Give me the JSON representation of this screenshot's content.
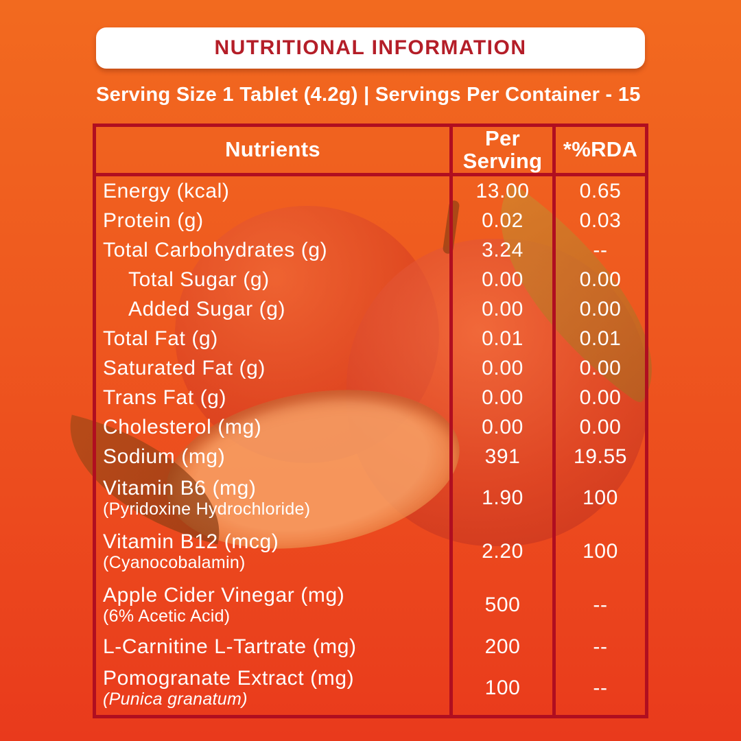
{
  "header": {
    "title": "NUTRITIONAL INFORMATION",
    "serving_line": "Serving Size 1 Tablet (4.2g) | Servings Per Container - 15"
  },
  "colors": {
    "bg_top": "#F26A1F",
    "bg_bottom": "#E93A1C",
    "border": "#B00E20",
    "title_text": "#B41E28",
    "text": "#FFFFFF",
    "box_bg": "#FFFFFF"
  },
  "background_art": {
    "description": "two red apples with leaf and apple slice, tinted orange",
    "icons": [
      "apple-back-image",
      "apple-front-image",
      "apple-stem-image",
      "leaf-right-image",
      "apple-slice-image",
      "leaf-dark-image"
    ]
  },
  "table": {
    "columns": [
      "Nutrients",
      "Per Serving",
      "*%RDA"
    ],
    "rows": [
      {
        "label": "Energy (kcal)",
        "per_serving": "13.00",
        "rda": "0.65"
      },
      {
        "label": "Protein (g)",
        "per_serving": "0.02",
        "rda": "0.03"
      },
      {
        "label": "Total Carbohydrates (g)",
        "per_serving": "3.24",
        "rda": "--"
      },
      {
        "label": "Total Sugar (g)",
        "indent": true,
        "per_serving": "0.00",
        "rda": "0.00"
      },
      {
        "label": "Added Sugar (g)",
        "indent": true,
        "per_serving": "0.00",
        "rda": "0.00"
      },
      {
        "label": "Total Fat (g)",
        "per_serving": "0.01",
        "rda": "0.01"
      },
      {
        "label": "Saturated Fat (g)",
        "per_serving": "0.00",
        "rda": "0.00"
      },
      {
        "label": "Trans Fat (g)",
        "per_serving": "0.00",
        "rda": "0.00"
      },
      {
        "label": "Cholesterol (mg)",
        "per_serving": "0.00",
        "rda": "0.00"
      },
      {
        "label": "Sodium (mg)",
        "per_serving": "391",
        "rda": "19.55"
      },
      {
        "label": "Vitamin B6 (mg)",
        "sub": "(Pyridoxine Hydrochloride)",
        "per_serving": "1.90",
        "rda": "100"
      },
      {
        "label": "Vitamin B12 (mcg)",
        "sub": "(Cyanocobalamin)",
        "per_serving": "2.20",
        "rda": "100"
      },
      {
        "label": "Apple Cider Vinegar (mg)",
        "sub": "(6% Acetic Acid)",
        "per_serving": "500",
        "rda": "--"
      },
      {
        "label": "L-Carnitine L-Tartrate (mg)",
        "per_serving": "200",
        "rda": "--"
      },
      {
        "label": "Pomogranate Extract (mg)",
        "sub": "(Punica granatum)",
        "per_serving": "100",
        "rda": "--"
      }
    ]
  }
}
